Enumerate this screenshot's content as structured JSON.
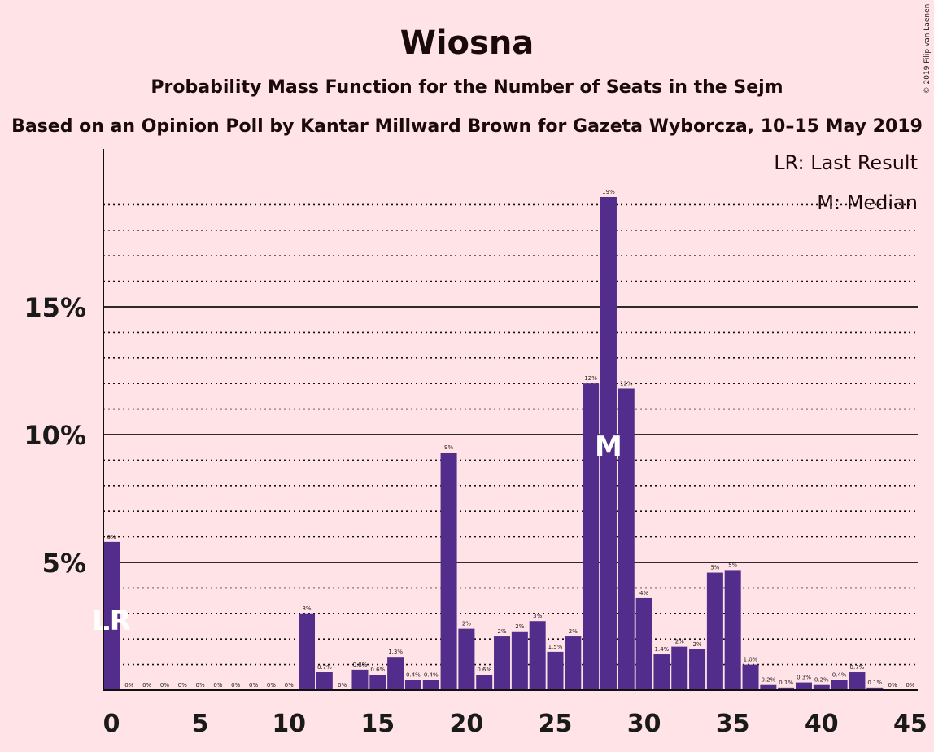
{
  "title": "Wiosna",
  "subtitle1": "Probability Mass Function for the Number of Seats in the Sejm",
  "subtitle2": "Based on an Opinion Poll by Kantar Millward Brown for Gazeta Wyborcza, 10–15 May 2019",
  "copyright": "© 2019 Filip van Laenen",
  "legend": {
    "last_result": "LR: Last Result",
    "median": "M: Median"
  },
  "chart_data": {
    "type": "bar",
    "x": [
      0,
      1,
      2,
      3,
      4,
      5,
      6,
      7,
      8,
      9,
      10,
      11,
      12,
      13,
      14,
      15,
      16,
      17,
      18,
      19,
      20,
      21,
      22,
      23,
      24,
      25,
      26,
      27,
      28,
      29,
      30,
      31,
      32,
      33,
      34,
      35,
      36,
      37,
      38,
      39,
      40,
      41,
      42,
      43,
      44,
      45
    ],
    "values": [
      5.8,
      0,
      0,
      0,
      0,
      0,
      0,
      0,
      0,
      0,
      0,
      3.0,
      0.7,
      0,
      0.8,
      0.6,
      1.3,
      0.4,
      0.4,
      9.3,
      2.4,
      0.6,
      2.1,
      2.3,
      2.7,
      1.5,
      2.1,
      12.0,
      19.3,
      11.8,
      3.6,
      1.4,
      1.7,
      1.6,
      4.6,
      4.7,
      1.0,
      0.2,
      0.1,
      0.3,
      0.2,
      0.4,
      0.7,
      0.1,
      0,
      0
    ],
    "labels": [
      "6%",
      "0%",
      "0%",
      "0%",
      "0%",
      "0%",
      "0%",
      "0%",
      "0%",
      "0%",
      "0%",
      "3%",
      "0.7%",
      "0%",
      "0.8%",
      "0.6%",
      "1.3%",
      "0.4%",
      "0.4%",
      "9%",
      "2%",
      "0.6%",
      "2%",
      "2%",
      "3%",
      "1.5%",
      "2%",
      "12%",
      "19%",
      "12%",
      "4%",
      "1.4%",
      "2%",
      "2%",
      "5%",
      "5%",
      "1.0%",
      "0.2%",
      "0.1%",
      "0.3%",
      "0.2%",
      "0.4%",
      "0.7%",
      "0.1%",
      "0%",
      "0%"
    ],
    "x_ticks": [
      0,
      5,
      10,
      15,
      20,
      25,
      30,
      35,
      40,
      45
    ],
    "x_tick_labels": [
      "0",
      "5",
      "10",
      "15",
      "20",
      "25",
      "30",
      "35",
      "40",
      "45"
    ],
    "y_ticks": [
      5,
      10,
      15
    ],
    "y_tick_labels": [
      "5%",
      "10%",
      "15%"
    ],
    "ylim": [
      0,
      20.5
    ],
    "last_result_seat": 0,
    "last_result_marker": "LR",
    "median_seat": 28,
    "median_marker": "M",
    "bar_color": "#532d8c",
    "background": "#ffe3e6",
    "grid": "dotted every 1%, solid every 5%",
    "legend_position": "top-right"
  }
}
